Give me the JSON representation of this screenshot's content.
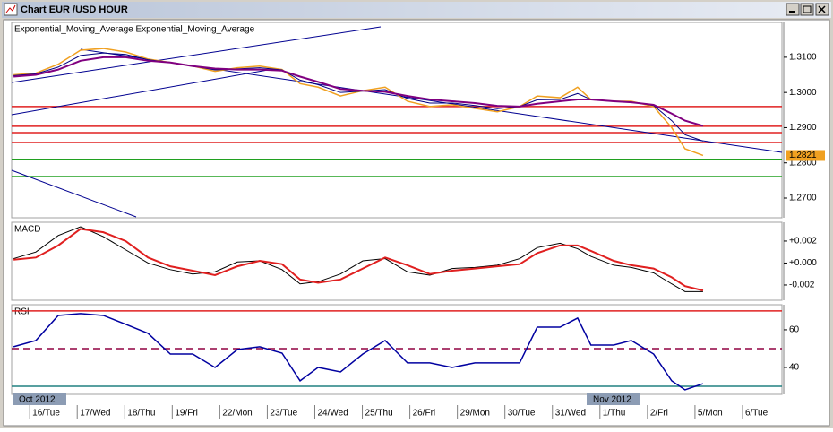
{
  "window": {
    "title": "Chart EUR /USD  HOUR",
    "period_labels": [
      "Oct 2012",
      "Nov 2012"
    ]
  },
  "chart_data": [
    {
      "type": "line",
      "title": "Exponential_Moving_Average Exponential_Moving_Average",
      "xlim": [
        -0.38,
        15.83
      ],
      "ylim": [
        1.2644,
        1.3199
      ],
      "yticks": [
        {
          "value": 1.27,
          "label": "1.2700"
        },
        {
          "value": 1.28,
          "label": "1.2800"
        },
        {
          "value": 1.29,
          "label": "1.2900"
        },
        {
          "value": 1.3,
          "label": "1.3000"
        },
        {
          "value": 1.31,
          "label": "1.3100"
        }
      ],
      "last_price": 1.2821,
      "x": [
        -0.34,
        0.13,
        0.6,
        1.07,
        1.55,
        2.02,
        2.49,
        2.96,
        3.43,
        3.9,
        4.37,
        4.84,
        5.31,
        5.69,
        6.07,
        6.54,
        7.01,
        7.48,
        7.95,
        8.42,
        8.89,
        9.37,
        9.84,
        10.31,
        10.68,
        11.16,
        11.53,
        11.81,
        12.29,
        12.66,
        13.13,
        13.51,
        13.79,
        14.17
      ],
      "hlines": [
        {
          "value": 1.296,
          "color": "#e02020"
        },
        {
          "value": 1.2904,
          "color": "#e02020"
        },
        {
          "value": 1.2886,
          "color": "#e02020"
        },
        {
          "value": 1.2858,
          "color": "#e02020"
        },
        {
          "value": 1.281,
          "color": "#20a020"
        },
        {
          "value": 1.2761,
          "color": "#20a020"
        }
      ],
      "series": [
        {
          "color": "#f0a020",
          "width": 1.5,
          "values": [
            1.305,
            1.3055,
            1.308,
            1.312,
            1.3125,
            1.3115,
            1.3095,
            1.3085,
            1.3075,
            1.306,
            1.307,
            1.3075,
            1.3065,
            1.3025,
            1.3015,
            1.299,
            1.3005,
            1.3015,
            1.2975,
            1.296,
            1.2965,
            1.2955,
            1.2945,
            1.296,
            1.299,
            1.2985,
            1.3015,
            1.298,
            1.2975,
            1.2975,
            1.296,
            1.29,
            1.284,
            1.2821
          ]
        },
        {
          "color": "#000080",
          "width": 1,
          "values": [
            1.3048,
            1.3053,
            1.3072,
            1.3105,
            1.3112,
            1.3108,
            1.3093,
            1.3085,
            1.3075,
            1.3064,
            1.3067,
            1.307,
            1.3064,
            1.3035,
            1.3022,
            1.3,
            1.3004,
            1.3008,
            1.2983,
            1.297,
            1.297,
            1.2963,
            1.2954,
            1.296,
            1.2979,
            1.298,
            1.2997,
            1.298,
            1.2975,
            1.2973,
            1.2963,
            1.292,
            1.288,
            1.2862
          ]
        },
        {
          "color": "#800080",
          "width": 2,
          "values": [
            1.3045,
            1.305,
            1.3065,
            1.309,
            1.31,
            1.31,
            1.309,
            1.3085,
            1.3075,
            1.3068,
            1.3065,
            1.3065,
            1.3062,
            1.3045,
            1.303,
            1.301,
            1.3005,
            1.3002,
            1.299,
            1.298,
            1.2975,
            1.297,
            1.2962,
            1.296,
            1.2968,
            1.2975,
            1.298,
            1.298,
            1.2975,
            1.2972,
            1.2965,
            1.294,
            1.292,
            1.2905
          ]
        }
      ]
    },
    {
      "type": "line",
      "title": "MACD",
      "xlim": [
        -0.38,
        15.83
      ],
      "ylim": [
        -0.00339,
        0.00371
      ],
      "yticks": [
        {
          "value": -0.002,
          "label": "-0.002"
        },
        {
          "value": 0,
          "label": "+0.000"
        },
        {
          "value": 0.002,
          "label": "+0.002"
        }
      ],
      "x": [
        -0.34,
        0.13,
        0.6,
        1.07,
        1.55,
        2.02,
        2.49,
        2.96,
        3.43,
        3.9,
        4.37,
        4.84,
        5.31,
        5.69,
        6.07,
        6.54,
        7.01,
        7.48,
        7.95,
        8.42,
        8.89,
        9.37,
        9.84,
        10.31,
        10.68,
        11.16,
        11.53,
        11.81,
        12.29,
        12.66,
        13.13,
        13.51,
        13.79,
        14.17
      ],
      "hlines": [],
      "series": [
        {
          "color": "#000000",
          "width": 1,
          "values": [
            0.0004,
            0.001,
            0.0025,
            0.0033,
            0.0024,
            0.0012,
            0,
            -0.0006,
            -0.001,
            -0.0008,
            0.0001,
            0.0002,
            -0.0006,
            -0.0019,
            -0.0017,
            -0.001,
            0.0002,
            0.0004,
            -0.0008,
            -0.0011,
            -0.0005,
            -0.0004,
            -0.0002,
            0.0004,
            0.0014,
            0.0018,
            0.0013,
            0.0006,
            -0.0002,
            -0.0004,
            -0.0009,
            -0.0019,
            -0.0026,
            -0.0026
          ]
        },
        {
          "color": "#e02020",
          "width": 2,
          "values": [
            0.0003,
            0.0005,
            0.0016,
            0.0031,
            0.0028,
            0.002,
            0.0005,
            -0.0003,
            -0.0007,
            -0.0011,
            -0.0003,
            0.0002,
            -0.0001,
            -0.0015,
            -0.0018,
            -0.0015,
            -0.0005,
            0.0005,
            -0.0002,
            -0.001,
            -0.0007,
            -0.0005,
            -0.0003,
            -0.0001,
            0.0009,
            0.0016,
            0.0016,
            0.0011,
            0.0002,
            -0.0002,
            -0.0005,
            -0.0013,
            -0.0021,
            -0.0025
          ]
        }
      ]
    },
    {
      "type": "line",
      "title": "RSI",
      "xlim": [
        -0.38,
        15.83
      ],
      "ylim": [
        25.7,
        73.3
      ],
      "yticks": [
        40,
        60
      ],
      "xticks": [
        {
          "value": 0,
          "label": "16/Tue"
        },
        {
          "value": 1,
          "label": "17/Wed"
        },
        {
          "value": 2,
          "label": "18/Thu"
        },
        {
          "value": 3,
          "label": "19/Fri"
        },
        {
          "value": 4,
          "label": "22/Mon"
        },
        {
          "value": 5,
          "label": "23/Tue"
        },
        {
          "value": 6,
          "label": "24/Wed"
        },
        {
          "value": 7,
          "label": "25/Thu"
        },
        {
          "value": 8,
          "label": "26/Fri"
        },
        {
          "value": 9,
          "label": "29/Mon"
        },
        {
          "value": 10,
          "label": "30/Tue"
        },
        {
          "value": 11,
          "label": "31/Wed"
        },
        {
          "value": 12,
          "label": "1/Thu"
        },
        {
          "value": 13,
          "label": "2/Fri"
        },
        {
          "value": 14,
          "label": "5/Mon"
        },
        {
          "value": 15,
          "label": "6/Tue"
        }
      ],
      "x": [
        -0.34,
        0.13,
        0.6,
        1.07,
        1.55,
        2.02,
        2.49,
        2.96,
        3.43,
        3.9,
        4.37,
        4.84,
        5.31,
        5.69,
        6.07,
        6.54,
        7.01,
        7.48,
        7.95,
        8.42,
        8.89,
        9.37,
        9.84,
        10.31,
        10.68,
        11.16,
        11.53,
        11.81,
        12.29,
        12.66,
        13.13,
        13.51,
        13.79,
        14.17
      ],
      "hlines": [
        {
          "value": 70,
          "color": "#e02020"
        },
        {
          "value": 50,
          "color": "#900040",
          "style": "dashed"
        },
        {
          "value": 30,
          "color": "#208080"
        }
      ],
      "series": [
        {
          "color": "#0000a0",
          "width": 1.5,
          "values": [
            51,
            54.3,
            67.6,
            68.6,
            67.6,
            62.9,
            58.1,
            47.1,
            47.1,
            40,
            49.5,
            51,
            47.6,
            32.9,
            40,
            37.6,
            47.1,
            54.3,
            42.4,
            42.4,
            40,
            42.4,
            42.4,
            42.4,
            61.4,
            61.4,
            66.2,
            51.9,
            51.9,
            54.3,
            47.1,
            32.9,
            28.1,
            31.4
          ]
        }
      ]
    }
  ]
}
